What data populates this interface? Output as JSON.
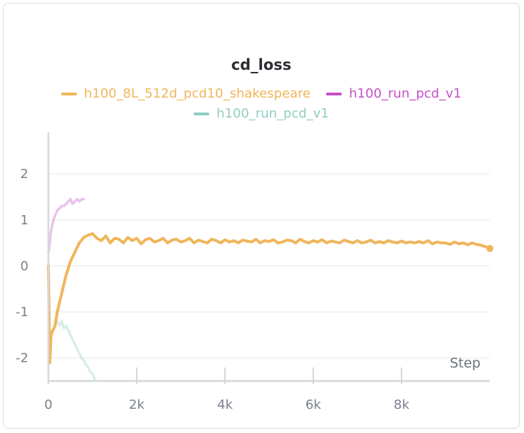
{
  "chart_data": {
    "type": "line",
    "title": "cd_loss",
    "xlabel": "Step",
    "ylabel": "",
    "xlim": [
      0,
      10000
    ],
    "ylim": [
      -2.5,
      2.9
    ],
    "x_ticks": [
      0,
      2000,
      4000,
      6000,
      8000
    ],
    "x_tick_labels": [
      "0",
      "2k",
      "4k",
      "6k",
      "8k"
    ],
    "y_ticks": [
      -2,
      -1,
      0,
      1,
      2
    ],
    "y_tick_labels": [
      "-2",
      "-1",
      "0",
      "1",
      "2"
    ],
    "grid": true,
    "legend_position": "top-center",
    "series": [
      {
        "name": "h100_8L_512d_pcd10_shakespeare",
        "color": "#f0b55a",
        "opacity": 1.0,
        "x": [
          0,
          30,
          60,
          100,
          150,
          200,
          300,
          400,
          500,
          600,
          700,
          800,
          900,
          1000,
          1100,
          1200,
          1300,
          1400,
          1500,
          1600,
          1700,
          1800,
          1900,
          2000,
          2100,
          2200,
          2300,
          2400,
          2500,
          2600,
          2700,
          2800,
          2900,
          3000,
          3100,
          3200,
          3300,
          3400,
          3500,
          3600,
          3700,
          3800,
          3900,
          4000,
          4100,
          4200,
          4300,
          4400,
          4500,
          4600,
          4700,
          4800,
          4900,
          5000,
          5100,
          5200,
          5300,
          5400,
          5500,
          5600,
          5700,
          5800,
          5900,
          6000,
          6100,
          6200,
          6300,
          6400,
          6500,
          6600,
          6700,
          6800,
          6900,
          7000,
          7100,
          7200,
          7300,
          7400,
          7500,
          7600,
          7700,
          7800,
          7900,
          8000,
          8100,
          8200,
          8300,
          8400,
          8500,
          8600,
          8700,
          8800,
          8900,
          9000,
          9100,
          9200,
          9300,
          9400,
          9500,
          9600,
          9700,
          9800,
          9900,
          10000
        ],
        "y": [
          0.0,
          -2.1,
          -1.5,
          -1.4,
          -1.3,
          -1.0,
          -0.6,
          -0.2,
          0.1,
          0.3,
          0.5,
          0.62,
          0.67,
          0.7,
          0.6,
          0.55,
          0.65,
          0.5,
          0.6,
          0.58,
          0.5,
          0.62,
          0.55,
          0.6,
          0.48,
          0.57,
          0.6,
          0.52,
          0.55,
          0.6,
          0.5,
          0.56,
          0.58,
          0.52,
          0.55,
          0.6,
          0.5,
          0.56,
          0.53,
          0.5,
          0.58,
          0.55,
          0.5,
          0.57,
          0.52,
          0.55,
          0.5,
          0.56,
          0.54,
          0.52,
          0.58,
          0.5,
          0.55,
          0.53,
          0.57,
          0.5,
          0.52,
          0.56,
          0.55,
          0.5,
          0.58,
          0.53,
          0.5,
          0.55,
          0.52,
          0.57,
          0.5,
          0.54,
          0.52,
          0.5,
          0.56,
          0.53,
          0.5,
          0.55,
          0.5,
          0.52,
          0.56,
          0.5,
          0.53,
          0.5,
          0.55,
          0.52,
          0.5,
          0.54,
          0.5,
          0.52,
          0.5,
          0.53,
          0.5,
          0.55,
          0.48,
          0.52,
          0.5,
          0.5,
          0.47,
          0.52,
          0.48,
          0.5,
          0.46,
          0.5,
          0.47,
          0.45,
          0.42,
          0.38
        ]
      },
      {
        "name": "h100_run_pcd_v1",
        "color": "#c34fc7",
        "opacity": 0.35,
        "x": [
          0,
          20,
          50,
          100,
          150,
          200,
          250,
          300,
          350,
          400,
          450,
          500,
          550,
          600,
          650,
          700,
          750,
          800
        ],
        "y": [
          0.3,
          0.4,
          0.7,
          0.95,
          1.1,
          1.2,
          1.25,
          1.3,
          1.3,
          1.35,
          1.4,
          1.45,
          1.35,
          1.4,
          1.45,
          1.4,
          1.45,
          1.45
        ]
      },
      {
        "name": "h100_run_pcd_v1",
        "color": "#7fc3b4",
        "opacity": 0.3,
        "x": [
          200,
          250,
          300,
          350,
          400,
          450,
          500,
          550,
          600,
          650,
          700,
          750,
          800,
          850,
          900,
          950,
          1000,
          1050
        ],
        "y": [
          -1.2,
          -1.3,
          -1.2,
          -1.35,
          -1.3,
          -1.4,
          -1.5,
          -1.6,
          -1.7,
          -1.8,
          -1.9,
          -2.0,
          -2.05,
          -2.15,
          -2.2,
          -2.3,
          -2.35,
          -2.45
        ]
      }
    ]
  }
}
